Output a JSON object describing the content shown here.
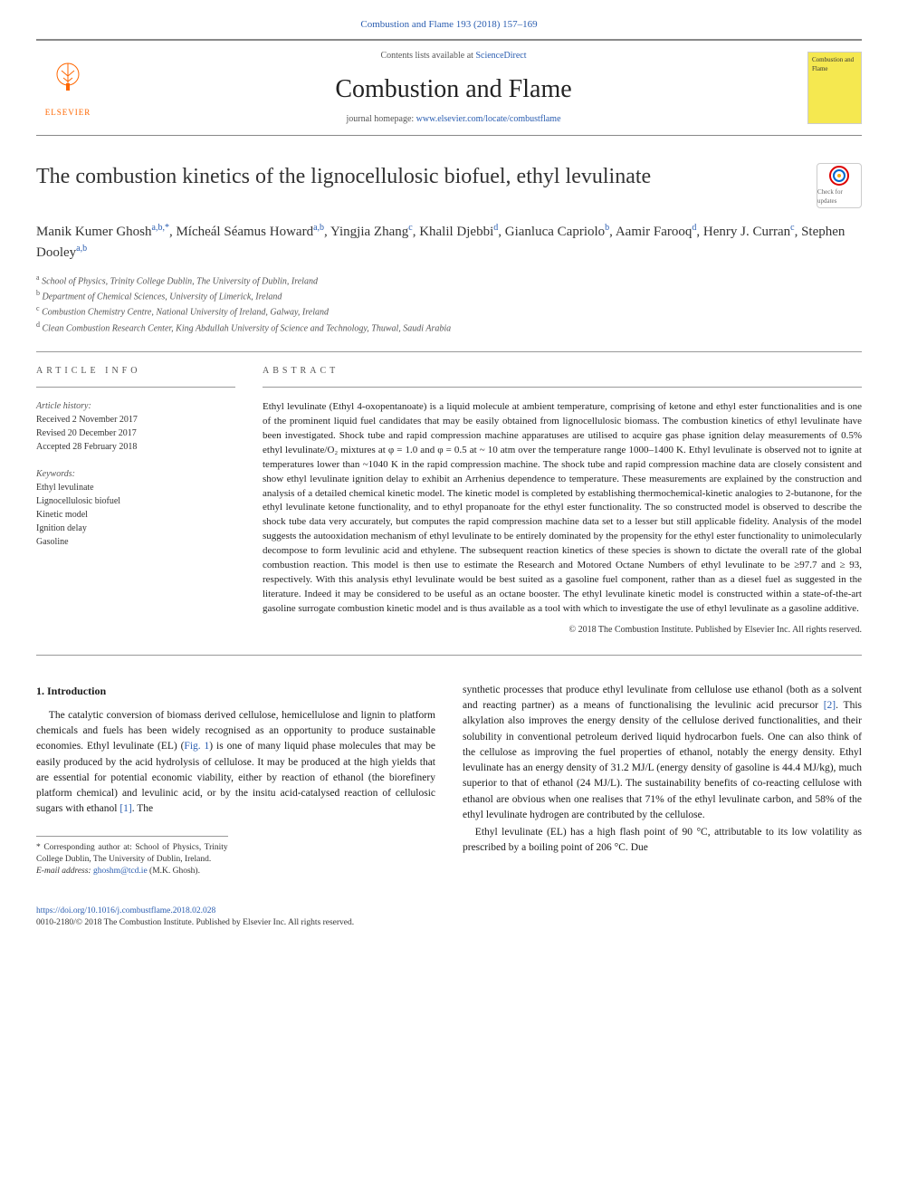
{
  "header": {
    "citation": "Combustion and Flame 193 (2018) 157–169",
    "contents_prefix": "Contents lists available at ",
    "contents_link": "ScienceDirect",
    "journal_name": "Combustion and Flame",
    "homepage_prefix": "journal homepage: ",
    "homepage_url": "www.elsevier.com/locate/combustflame",
    "publisher_logo_text": "ELSEVIER",
    "cover_text": "Combustion and Flame"
  },
  "article": {
    "title": "The combustion kinetics of the lignocellulosic biofuel, ethyl levulinate",
    "crossmark_label": "Check for updates"
  },
  "authors_html": "Manik Kumer Ghosh<sup>a,b,*</sup>, Mícheál Séamus Howard<sup>a,b</sup>, Yingjia Zhang<sup>c</sup>, Khalil Djebbi<sup>d</sup>, Gianluca Capriolo<sup>b</sup>, Aamir Farooq<sup>d</sup>, Henry J. Curran<sup>c</sup>, Stephen Dooley<sup>a,b</sup>",
  "affiliations": [
    {
      "sup": "a",
      "text": "School of Physics, Trinity College Dublin, The University of Dublin, Ireland"
    },
    {
      "sup": "b",
      "text": "Department of Chemical Sciences, University of Limerick, Ireland"
    },
    {
      "sup": "c",
      "text": "Combustion Chemistry Centre, National University of Ireland, Galway, Ireland"
    },
    {
      "sup": "d",
      "text": "Clean Combustion Research Center, King Abdullah University of Science and Technology, Thuwal, Saudi Arabia"
    }
  ],
  "info": {
    "heading": "ARTICLE INFO",
    "history_label": "Article history:",
    "history": [
      "Received 2 November 2017",
      "Revised 20 December 2017",
      "Accepted 28 February 2018"
    ],
    "keywords_label": "Keywords:",
    "keywords": [
      "Ethyl levulinate",
      "Lignocellulosic biofuel",
      "Kinetic model",
      "Ignition delay",
      "Gasoline"
    ]
  },
  "abstract": {
    "heading": "ABSTRACT",
    "text": "Ethyl levulinate (Ethyl 4-oxopentanoate) is a liquid molecule at ambient temperature, comprising of ketone and ethyl ester functionalities and is one of the prominent liquid fuel candidates that may be easily obtained from lignocellulosic biomass. The combustion kinetics of ethyl levulinate have been investigated. Shock tube and rapid compression machine apparatuses are utilised to acquire gas phase ignition delay measurements of 0.5% ethyl levulinate/O₂ mixtures at φ = 1.0 and φ = 0.5 at ~ 10 atm over the temperature range 1000–1400 K. Ethyl levulinate is observed not to ignite at temperatures lower than ~1040 K in the rapid compression machine. The shock tube and rapid compression machine data are closely consistent and show ethyl levulinate ignition delay to exhibit an Arrhenius dependence to temperature. These measurements are explained by the construction and analysis of a detailed chemical kinetic model. The kinetic model is completed by establishing thermochemical-kinetic analogies to 2-butanone, for the ethyl levulinate ketone functionality, and to ethyl propanoate for the ethyl ester functionality. The so constructed model is observed to describe the shock tube data very accurately, but computes the rapid compression machine data set to a lesser but still applicable fidelity. Analysis of the model suggests the autooxidation mechanism of ethyl levulinate to be entirely dominated by the propensity for the ethyl ester functionality to unimolecularly decompose to form levulinic acid and ethylene. The subsequent reaction kinetics of these species is shown to dictate the overall rate of the global combustion reaction. This model is then use to estimate the Research and Motored Octane Numbers of ethyl levulinate to be ≥97.7 and ≥ 93, respectively. With this analysis ethyl levulinate would be best suited as a gasoline fuel component, rather than as a diesel fuel as suggested in the literature. Indeed it may be considered to be useful as an octane booster. The ethyl levulinate kinetic model is constructed within a state-of-the-art gasoline surrogate combustion kinetic model and is thus available as a tool with which to investigate the use of ethyl levulinate as a gasoline additive.",
    "copyright": "© 2018 The Combustion Institute. Published by Elsevier Inc. All rights reserved."
  },
  "body": {
    "section_number": "1.",
    "section_title": "Introduction",
    "left_paragraphs": [
      "The catalytic conversion of biomass derived cellulose, hemicellulose and lignin to platform chemicals and fuels has been widely recognised as an opportunity to produce sustainable economies. Ethyl levulinate (EL) (Fig. 1) is one of many liquid phase molecules that may be easily produced by the acid hydrolysis of cellulose. It may be produced at the high yields that are essential for potential economic viability, either by reaction of ethanol (the biorefinery platform chemical) and levulinic acid, or by the insitu acid-catalysed reaction of cellulosic sugars with ethanol [1]. The"
    ],
    "right_paragraphs": [
      "synthetic processes that produce ethyl levulinate from cellulose use ethanol (both as a solvent and reacting partner) as a means of functionalising the levulinic acid precursor [2]. This alkylation also improves the energy density of the cellulose derived functionalities, and their solubility in conventional petroleum derived liquid hydrocarbon fuels. One can also think of the cellulose as improving the fuel properties of ethanol, notably the energy density. Ethyl levulinate has an energy density of 31.2 MJ/L (energy density of gasoline is 44.4 MJ/kg), much superior to that of ethanol (24 MJ/L). The sustainability benefits of co-reacting cellulose with ethanol are obvious when one realises that 71% of the ethyl levulinate carbon, and 58% of the ethyl levulinate hydrogen are contributed by the cellulose.",
      "Ethyl levulinate (EL) has a high flash point of 90 °C, attributable to its low volatility as prescribed by a boiling point of 206 °C. Due"
    ]
  },
  "footnotes": {
    "corresponding": "* Corresponding author at: School of Physics, Trinity College Dublin, The University of Dublin, Ireland.",
    "email_label": "E-mail address:",
    "email": "ghoshm@tcd.ie",
    "email_name": "(M.K. Ghosh)."
  },
  "footer": {
    "doi": "https://doi.org/10.1016/j.combustflame.2018.02.028",
    "issn_line": "0010-2180/© 2018 The Combustion Institute. Published by Elsevier Inc. All rights reserved."
  },
  "colors": {
    "link": "#2a5db0",
    "elsevier_orange": "#ff6600",
    "cover_yellow": "#f5e850",
    "rule": "#999999",
    "text": "#1a1a1a"
  },
  "typography": {
    "title_fontsize": 24,
    "journal_name_fontsize": 28,
    "authors_fontsize": 15,
    "body_fontsize": 11.5,
    "abstract_fontsize": 11,
    "small_fontsize": 10
  }
}
